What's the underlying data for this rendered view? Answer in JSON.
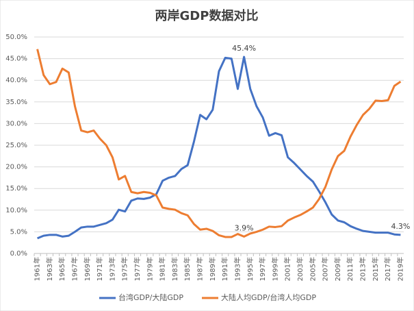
{
  "chart_data": {
    "type": "line",
    "title": "两岸GDP数据对比",
    "categories": [
      "1961年",
      null,
      "1963年",
      null,
      "1965年",
      null,
      "1967年",
      null,
      "1969年",
      null,
      "1971年",
      null,
      "1973年",
      null,
      "1975年",
      null,
      "1977年",
      null,
      "1979年",
      null,
      "1981年",
      null,
      "1983年",
      null,
      "1985年",
      null,
      "1987年",
      null,
      "1989年",
      null,
      "1991年",
      null,
      "1993年",
      null,
      "1995年",
      null,
      "1997年",
      null,
      "1999年",
      null,
      "2001年",
      null,
      "2003年",
      null,
      "2005年",
      null,
      "2007年",
      null,
      "2009年",
      null,
      "2011年",
      null,
      "2013年",
      null,
      "2015年",
      null,
      "2017年",
      null,
      "2019年"
    ],
    "series": [
      {
        "name": "台湾GDP/大陆GDP",
        "color": "#4472c4",
        "values": [
          3.5,
          4.1,
          4.3,
          4.3,
          3.9,
          4.1,
          5.0,
          6.0,
          6.2,
          6.2,
          6.6,
          7.0,
          7.8,
          10.1,
          9.7,
          12.2,
          12.7,
          12.6,
          12.9,
          13.7,
          16.8,
          17.5,
          17.9,
          19.5,
          20.4,
          25.8,
          32.0,
          31.0,
          33.2,
          42.1,
          45.2,
          45.0,
          38.0,
          45.4,
          38.0,
          34.0,
          31.4,
          27.2,
          27.8,
          27.3,
          22.2,
          20.9,
          19.4,
          17.9,
          16.6,
          14.3,
          11.8,
          9.0,
          7.6,
          7.2,
          6.3,
          5.7,
          5.2,
          5.0,
          4.8,
          4.8,
          4.8,
          4.4,
          4.3
        ],
        "value_labels": [
          null,
          null,
          null,
          null,
          null,
          null,
          null,
          null,
          null,
          null,
          null,
          null,
          null,
          null,
          null,
          null,
          null,
          null,
          null,
          null,
          null,
          null,
          null,
          null,
          null,
          null,
          null,
          null,
          null,
          null,
          null,
          null,
          null,
          "45.4%",
          null,
          null,
          null,
          null,
          null,
          null,
          null,
          null,
          null,
          null,
          null,
          null,
          null,
          null,
          null,
          null,
          null,
          null,
          null,
          null,
          null,
          null,
          null,
          null,
          "4.3%"
        ]
      },
      {
        "name": "大陆人均GDP/台湾人均GDP",
        "color": "#ed7d31",
        "values": [
          47.2,
          41.2,
          39.1,
          39.6,
          42.7,
          41.8,
          34.0,
          28.4,
          28.0,
          28.4,
          26.5,
          25.0,
          22.2,
          17.1,
          17.9,
          14.2,
          13.9,
          14.2,
          14.0,
          13.4,
          10.6,
          10.3,
          10.1,
          9.3,
          8.8,
          6.8,
          5.5,
          5.7,
          5.2,
          4.2,
          3.8,
          3.8,
          4.5,
          3.9,
          4.6,
          5.0,
          5.5,
          6.2,
          6.1,
          6.3,
          7.6,
          8.3,
          8.9,
          9.7,
          10.6,
          12.6,
          15.4,
          19.4,
          22.5,
          23.7,
          27.0,
          29.7,
          32.0,
          33.4,
          35.3,
          35.2,
          35.4,
          38.7,
          39.7
        ],
        "value_labels": [
          null,
          null,
          null,
          null,
          null,
          null,
          null,
          null,
          null,
          null,
          null,
          null,
          null,
          null,
          null,
          null,
          null,
          null,
          null,
          null,
          null,
          null,
          null,
          null,
          null,
          null,
          null,
          null,
          null,
          null,
          null,
          null,
          null,
          "3.9%",
          null,
          null,
          null,
          null,
          null,
          null,
          null,
          null,
          null,
          null,
          null,
          null,
          null,
          null,
          null,
          null,
          null,
          null,
          null,
          null,
          null,
          null,
          null,
          null,
          null
        ]
      }
    ],
    "ylim": [
      0,
      50
    ],
    "yticks": [
      {
        "value": 0,
        "label": "0.0%"
      },
      {
        "value": 5,
        "label": "5.0%"
      },
      {
        "value": 10,
        "label": "10.0%"
      },
      {
        "value": 15,
        "label": "15.0%"
      },
      {
        "value": 20,
        "label": "20.0%"
      },
      {
        "value": 25,
        "label": "25.0%"
      },
      {
        "value": 30,
        "label": "30.0%"
      },
      {
        "value": 35,
        "label": "35.0%"
      },
      {
        "value": 40,
        "label": "40.0%"
      },
      {
        "value": 45,
        "label": "45.0%"
      },
      {
        "value": 50,
        "label": "50.0%"
      }
    ],
    "grid": true,
    "legend": "bottom"
  }
}
